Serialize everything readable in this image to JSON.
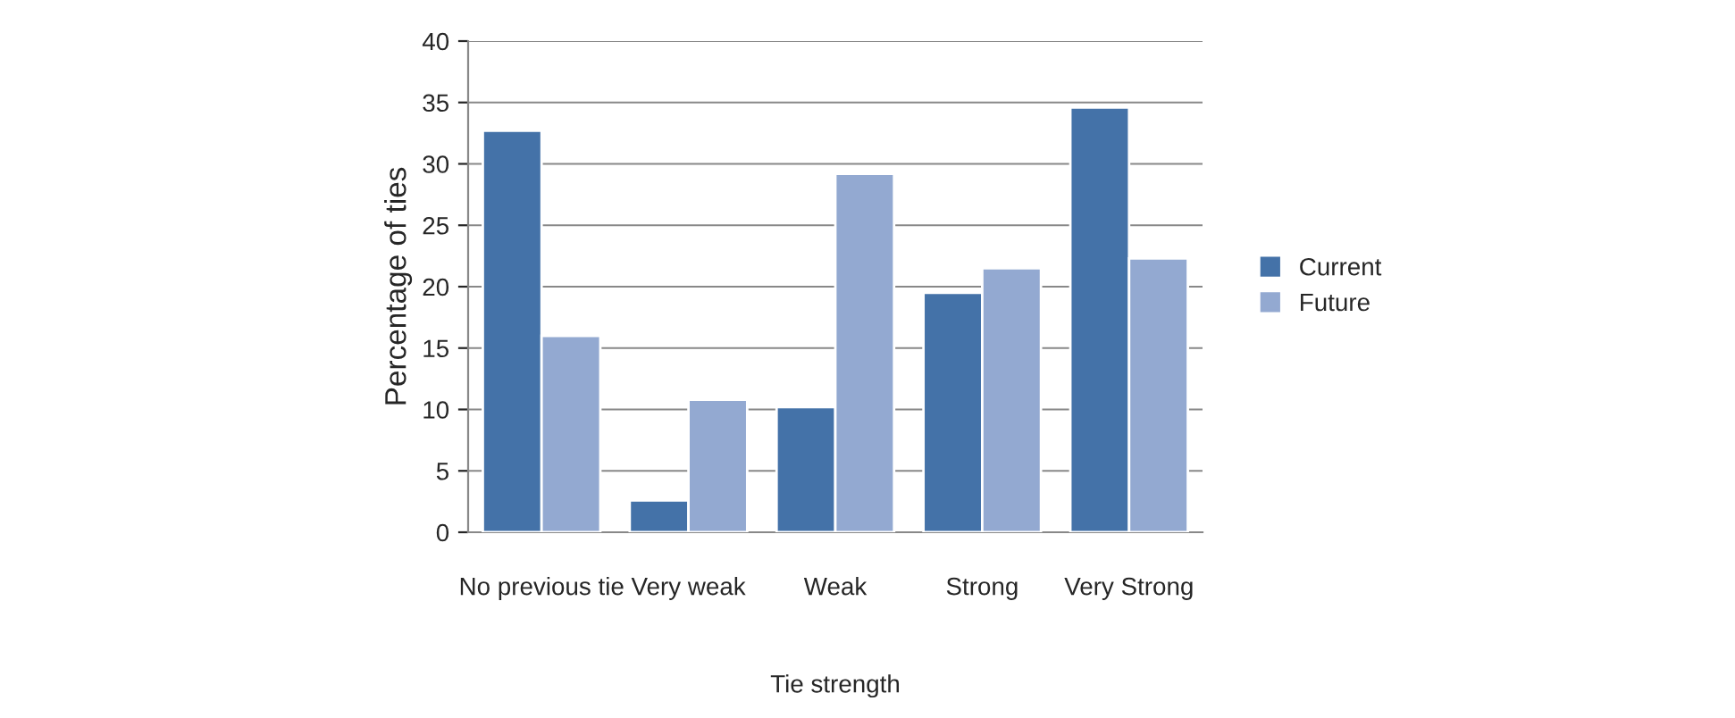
{
  "chart_data": {
    "type": "bar",
    "xlabel": "Tie strength",
    "ylabel": "Percentage of ties",
    "categories": [
      "No previous tie",
      "Very weak",
      "Weak",
      "Strong",
      "Very Strong"
    ],
    "series": [
      {
        "name": "Current",
        "color": "#4472a8",
        "values": [
          32.7,
          2.6,
          10.2,
          19.5,
          34.6
        ]
      },
      {
        "name": "Future",
        "color": "#93a9d1",
        "values": [
          16.0,
          10.8,
          29.2,
          21.5,
          22.3
        ]
      }
    ],
    "ylim": [
      0,
      40
    ],
    "yticks": [
      0,
      5,
      10,
      15,
      20,
      25,
      30,
      35,
      40
    ],
    "grid": "y",
    "legend": "right"
  }
}
